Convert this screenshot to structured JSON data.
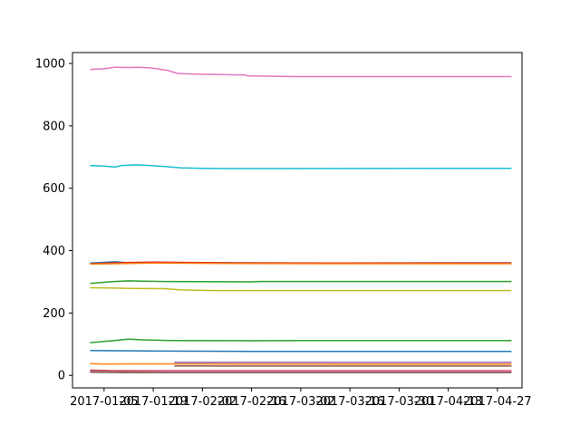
{
  "chart_data": {
    "type": "line",
    "title": "",
    "xlabel": "",
    "ylabel": "",
    "x_ticks": [
      "2017-01-05",
      "2017-01-19",
      "2017-02-02",
      "2017-02-16",
      "2017-03-02",
      "2017-03-16",
      "2017-03-30",
      "2017-04-13",
      "2017-04-27"
    ],
    "y_ticks": [
      0,
      200,
      400,
      600,
      800,
      1000
    ],
    "xlim": [
      "2016-12-27",
      "2017-05-04"
    ],
    "ylim": [
      -40,
      1035
    ],
    "grid": false,
    "legend": "none",
    "series": [
      {
        "color": "#e377c2",
        "points": [
          [
            "2017-01-01",
            981
          ],
          [
            "2017-01-05",
            983
          ],
          [
            "2017-01-08",
            988
          ],
          [
            "2017-01-12",
            987
          ],
          [
            "2017-01-15",
            988
          ],
          [
            "2017-01-18",
            986
          ],
          [
            "2017-01-20",
            983
          ],
          [
            "2017-01-23",
            978
          ],
          [
            "2017-01-26",
            968
          ],
          [
            "2017-01-31",
            966
          ],
          [
            "2017-02-14",
            963
          ],
          [
            "2017-02-15",
            960
          ],
          [
            "2017-02-28",
            958
          ],
          [
            "2017-05-01",
            958
          ]
        ]
      },
      {
        "color": "#17becf",
        "points": [
          [
            "2017-01-01",
            673
          ],
          [
            "2017-01-05",
            671
          ],
          [
            "2017-01-08",
            668
          ],
          [
            "2017-01-10",
            673
          ],
          [
            "2017-01-14",
            675
          ],
          [
            "2017-01-18",
            673
          ],
          [
            "2017-01-22",
            670
          ],
          [
            "2017-01-27",
            665
          ],
          [
            "2017-02-02",
            664
          ],
          [
            "2017-02-09",
            663
          ],
          [
            "2017-02-20",
            663
          ],
          [
            "2017-05-01",
            664
          ]
        ]
      },
      {
        "color": "#1f77b4",
        "points": [
          [
            "2017-01-01",
            360
          ],
          [
            "2017-01-08",
            364
          ],
          [
            "2017-01-12",
            361
          ],
          [
            "2017-01-19",
            362
          ],
          [
            "2017-02-05",
            361
          ],
          [
            "2017-02-20",
            360
          ],
          [
            "2017-05-01",
            361
          ]
        ]
      },
      {
        "color": "#d62728",
        "points": [
          [
            "2017-01-01",
            358
          ],
          [
            "2017-01-12",
            362
          ],
          [
            "2017-01-19",
            363
          ],
          [
            "2017-02-10",
            361
          ],
          [
            "2017-03-10",
            360
          ],
          [
            "2017-05-01",
            360
          ]
        ]
      },
      {
        "color": "#ff7f0e",
        "points": [
          [
            "2017-01-01",
            357
          ],
          [
            "2017-01-19",
            360
          ],
          [
            "2017-02-10",
            359
          ],
          [
            "2017-03-10",
            358
          ],
          [
            "2017-05-01",
            358
          ]
        ]
      },
      {
        "color": "#2ca02c",
        "points": [
          [
            "2017-01-01",
            295
          ],
          [
            "2017-01-04",
            298
          ],
          [
            "2017-01-08",
            301
          ],
          [
            "2017-01-12",
            303
          ],
          [
            "2017-01-16",
            302
          ],
          [
            "2017-01-22",
            301
          ],
          [
            "2017-02-16",
            300
          ],
          [
            "2017-02-18",
            301
          ],
          [
            "2017-05-01",
            301
          ]
        ]
      },
      {
        "color": "#bcbd22",
        "points": [
          [
            "2017-01-01",
            281
          ],
          [
            "2017-01-08",
            280
          ],
          [
            "2017-01-12",
            279
          ],
          [
            "2017-01-22",
            278
          ],
          [
            "2017-01-27",
            274
          ],
          [
            "2017-02-05",
            272
          ],
          [
            "2017-03-10",
            272
          ],
          [
            "2017-05-01",
            272
          ]
        ]
      },
      {
        "color": "#2ca02c",
        "points": [
          [
            "2017-01-01",
            105
          ],
          [
            "2017-01-04",
            108
          ],
          [
            "2017-01-08",
            112
          ],
          [
            "2017-01-12",
            116
          ],
          [
            "2017-01-16",
            114
          ],
          [
            "2017-01-24",
            112
          ],
          [
            "2017-02-16",
            111
          ],
          [
            "2017-03-02",
            112
          ],
          [
            "2017-05-01",
            112
          ]
        ]
      },
      {
        "color": "#1f77b4",
        "points": [
          [
            "2017-01-01",
            80
          ],
          [
            "2017-01-08",
            79
          ],
          [
            "2017-01-22",
            78
          ],
          [
            "2017-02-15",
            77
          ],
          [
            "2017-05-01",
            77
          ]
        ]
      },
      {
        "color": "#9467bd",
        "points": [
          [
            "2017-01-25",
            42
          ],
          [
            "2017-05-01",
            42
          ]
        ]
      },
      {
        "color": "#ff7f0e",
        "points": [
          [
            "2017-01-01",
            38
          ],
          [
            "2017-01-05",
            36
          ],
          [
            "2017-01-12",
            37
          ],
          [
            "2017-01-20",
            37
          ],
          [
            "2017-03-20",
            36
          ],
          [
            "2017-05-01",
            36
          ]
        ]
      },
      {
        "color": "#8c564b",
        "points": [
          [
            "2017-01-25",
            30
          ],
          [
            "2017-05-01",
            30
          ]
        ]
      },
      {
        "color": "#d62728",
        "points": [
          [
            "2017-01-01",
            17
          ],
          [
            "2017-01-08",
            15
          ],
          [
            "2017-01-25",
            15
          ],
          [
            "2017-05-01",
            15
          ]
        ]
      },
      {
        "color": "#e377c2",
        "points": [
          [
            "2017-01-01",
            14
          ],
          [
            "2017-01-10",
            12
          ],
          [
            "2017-01-25",
            13
          ],
          [
            "2017-05-01",
            13
          ]
        ]
      },
      {
        "color": "#7f7f7f",
        "points": [
          [
            "2017-01-01",
            12
          ],
          [
            "2017-01-10",
            11
          ],
          [
            "2017-01-25",
            10
          ],
          [
            "2017-05-01",
            10
          ]
        ]
      },
      {
        "color": "#8c564b",
        "points": [
          [
            "2017-01-01",
            10
          ],
          [
            "2017-01-10",
            9
          ],
          [
            "2017-05-01",
            9
          ]
        ]
      }
    ]
  }
}
